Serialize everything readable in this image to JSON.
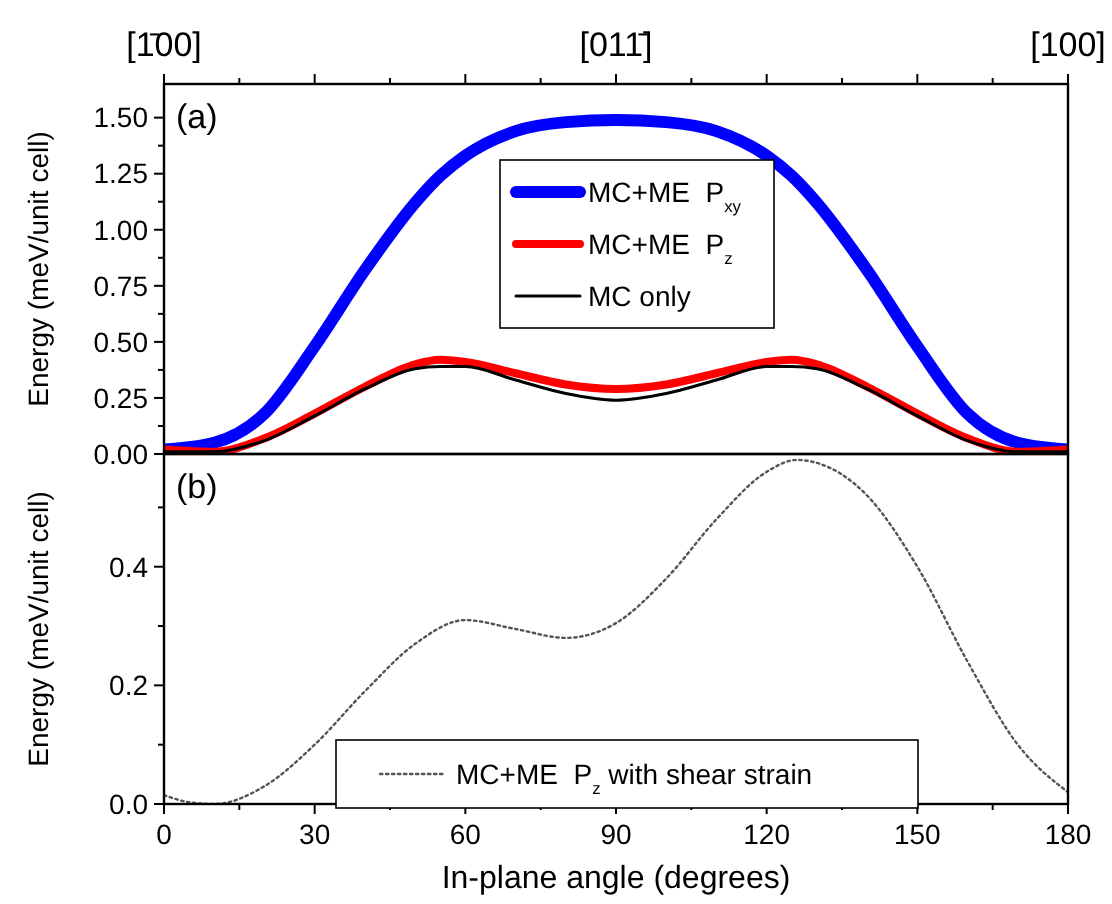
{
  "chart_data": [
    {
      "type": "line",
      "ylabel": "Energy (meV/unit cell)",
      "annotations": [
        "(a)",
        {
          "text": "[1̄00]",
          "x": 0
        },
        {
          "text": "[011̄]",
          "x": 90
        },
        {
          "text": "[100]",
          "x": 180
        }
      ],
      "xlim": [
        0,
        180
      ],
      "ylim": [
        0,
        1.65
      ],
      "yticks": [
        {
          "value": 0,
          "label": "0.00"
        },
        {
          "value": 0.125,
          "label": null
        },
        {
          "value": 0.25,
          "label": "0.25"
        },
        {
          "value": 0.375,
          "label": null
        },
        {
          "value": 0.5,
          "label": "0.50"
        },
        {
          "value": 0.625,
          "label": null
        },
        {
          "value": 0.75,
          "label": "0.75"
        },
        {
          "value": 0.875,
          "label": null
        },
        {
          "value": 1,
          "label": "1.00"
        },
        {
          "value": 1.125,
          "label": null
        },
        {
          "value": 1.25,
          "label": "1.25"
        },
        {
          "value": 1.375,
          "label": null
        },
        {
          "value": 1.5,
          "label": "1.50"
        }
      ],
      "tick_labels": "y",
      "legend": "top",
      "line_style": "solid",
      "marker": "none",
      "x": [
        0,
        10,
        20,
        30,
        40,
        50,
        55,
        60,
        70,
        80,
        90,
        100,
        110,
        120,
        125,
        130,
        140,
        150,
        160,
        170,
        180
      ],
      "series": [
        {
          "name": "MC+ME  P$_{xy}$",
          "color": "#0000ff",
          "values": [
            0.02,
            0.05,
            0.18,
            0.48,
            0.82,
            1.12,
            1.24,
            1.33,
            1.44,
            1.48,
            1.49,
            1.48,
            1.44,
            1.33,
            1.24,
            1.12,
            0.82,
            0.48,
            0.18,
            0.05,
            0.02
          ]
        },
        {
          "name": "MC+ME  P$_{z}$",
          "color": "#ff0000",
          "values": [
            0.02,
            0.01,
            0.07,
            0.18,
            0.3,
            0.4,
            0.42,
            0.41,
            0.36,
            0.31,
            0.29,
            0.31,
            0.36,
            0.41,
            0.42,
            0.4,
            0.3,
            0.18,
            0.07,
            0.01,
            0.02
          ]
        },
        {
          "name": "MC only",
          "color": "#000000",
          "values": [
            0.01,
            0.01,
            0.06,
            0.17,
            0.29,
            0.38,
            0.39,
            0.39,
            0.33,
            0.27,
            0.24,
            0.27,
            0.33,
            0.39,
            0.39,
            0.38,
            0.29,
            0.17,
            0.06,
            0.01,
            0.01
          ]
        }
      ]
    },
    {
      "type": "line",
      "xlabel": "In-plane angle (degrees)",
      "ylabel": "Energy (meV/unit cell)",
      "annotations": [
        "(b)"
      ],
      "xlim": [
        0,
        180
      ],
      "ylim": [
        0,
        0.59
      ],
      "xticks": [
        0,
        {
          "value": 15,
          "label": null
        },
        30,
        {
          "value": 45,
          "label": null
        },
        60,
        {
          "value": 75,
          "label": null
        },
        90,
        {
          "value": 105,
          "label": null
        },
        120,
        {
          "value": 135,
          "label": null
        },
        150,
        {
          "value": 165,
          "label": null
        },
        180
      ],
      "yticks": [
        {
          "value": 0,
          "label": "0.0"
        },
        {
          "value": 0.1,
          "label": null
        },
        0.2,
        {
          "value": 0.3,
          "label": null
        },
        0.4,
        {
          "value": 0.5,
          "label": null
        }
      ],
      "legend": "bottom",
      "line_style": "dotted",
      "marker": "none",
      "x": [
        0,
        5,
        10,
        20,
        30,
        40,
        50,
        60,
        70,
        80,
        90,
        100,
        110,
        120,
        126,
        130,
        140,
        150,
        160,
        170,
        180
      ],
      "series": [
        {
          "name": "MC+ME  P$_{z}$ with shear strain",
          "color": "#555555",
          "values": [
            0.015,
            0.003,
            0,
            0.03,
            0.1,
            0.19,
            0.27,
            0.31,
            0.295,
            0.28,
            0.305,
            0.38,
            0.48,
            0.56,
            0.58,
            0.575,
            0.52,
            0.4,
            0.24,
            0.1,
            0.02
          ]
        }
      ]
    }
  ]
}
